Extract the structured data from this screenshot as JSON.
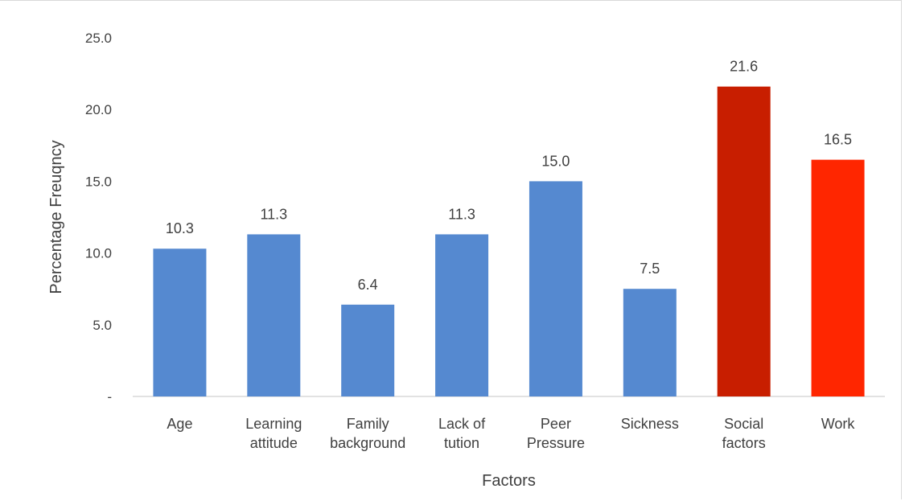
{
  "chart_data": {
    "type": "bar",
    "title": "",
    "xlabel": "Factors",
    "ylabel": "Percentage Freuqncy",
    "ylim": [
      0,
      25
    ],
    "yticks": [
      0,
      5,
      10,
      15,
      20,
      25
    ],
    "ytick_labels": [
      "-",
      "5.0",
      "10.0",
      "15.0",
      "20.0",
      "25.0"
    ],
    "categories": [
      [
        "Age"
      ],
      [
        "Learning",
        "attitude"
      ],
      [
        "Family",
        "background"
      ],
      [
        "Lack of",
        "tution"
      ],
      [
        "Peer",
        "Pressure"
      ],
      [
        "Sickness"
      ],
      [
        "Social",
        "factors"
      ],
      [
        "Work"
      ]
    ],
    "values": [
      10.3,
      11.3,
      6.4,
      11.3,
      15.0,
      7.5,
      21.6,
      16.5
    ],
    "value_labels": [
      "10.3",
      "11.3",
      "6.4",
      "11.3",
      "15.0",
      "7.5",
      "21.6",
      "16.5"
    ],
    "bar_colors": [
      "#5589d0",
      "#5589d0",
      "#5589d0",
      "#5589d0",
      "#5589d0",
      "#5589d0",
      "#c81e00",
      "#ff2600"
    ],
    "grid": false,
    "legend": "none"
  }
}
